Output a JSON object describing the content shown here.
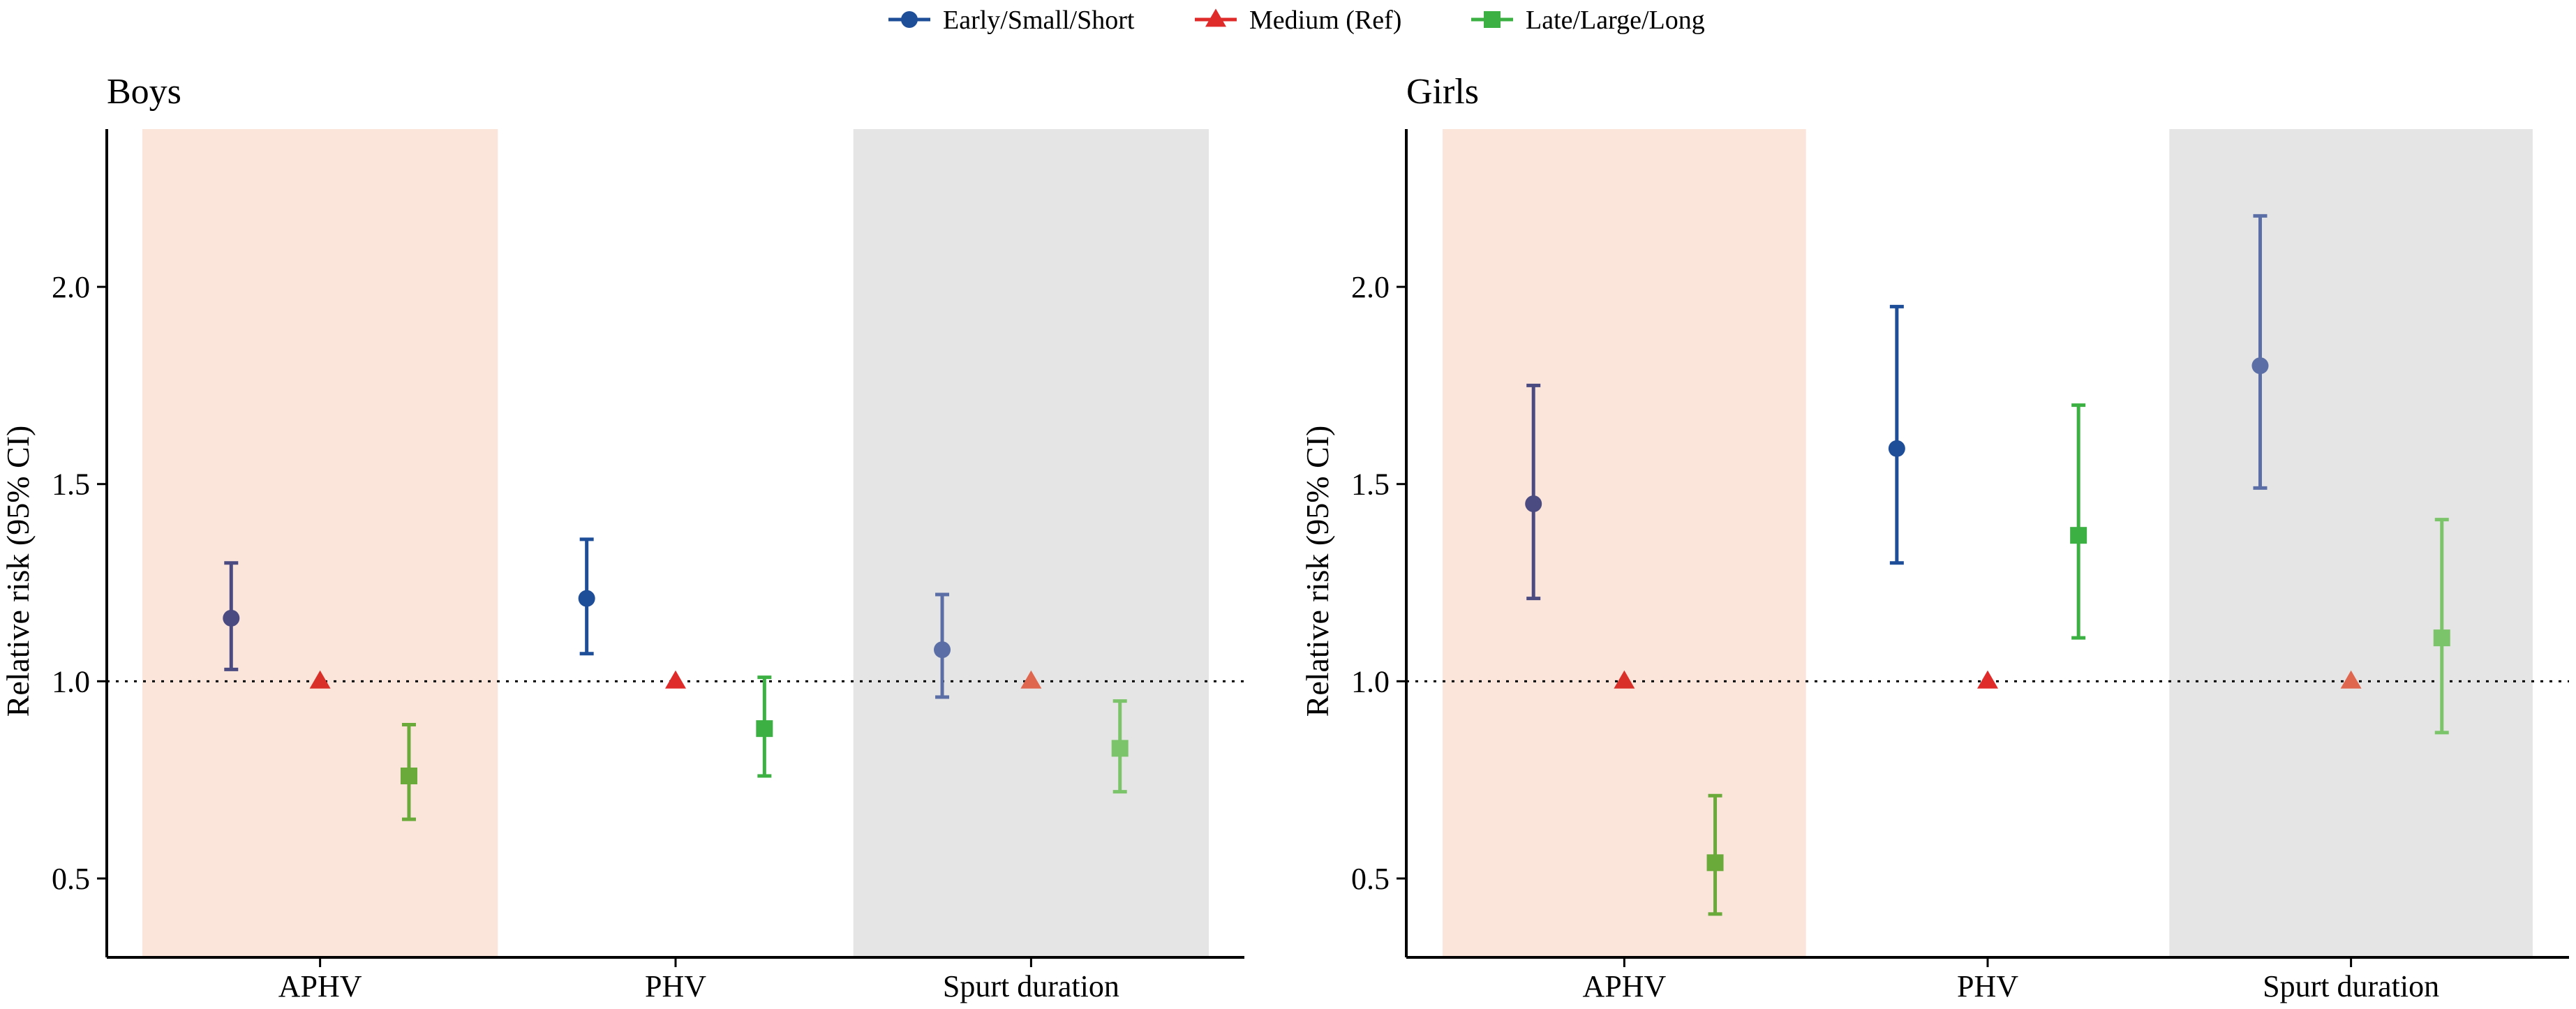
{
  "chart_data": {
    "type": "scatter",
    "subtype": "point-range (forest) plot",
    "legend": {
      "position": "top-center",
      "entries": [
        {
          "label": "Early/Small/Short",
          "marker": "circle",
          "color": "#1f4e99"
        },
        {
          "label": "Medium (Ref)",
          "marker": "triangle",
          "color": "#e02b2b"
        },
        {
          "label": "Late/Large/Long",
          "marker": "square",
          "color": "#3cb043"
        }
      ]
    },
    "ylabel": "Relative risk (95% CI)",
    "ylim": [
      0.3,
      2.4
    ],
    "yticks": [
      0.5,
      1.0,
      1.5,
      2.0
    ],
    "ytick_labels": [
      "0.5",
      "1.0",
      "1.5",
      "2.0"
    ],
    "reference_line": 1.0,
    "categories": [
      "APHV",
      "PHV",
      "Spurt duration"
    ],
    "category_backgrounds": [
      "#fbe5da",
      "#ffffff",
      "#e5e5e5"
    ],
    "panels": [
      {
        "title": "Boys",
        "series": [
          {
            "category": "APHV",
            "points": [
              {
                "group": "Early/Small/Short",
                "estimate": 1.16,
                "lower": 1.03,
                "upper": 1.3,
                "color": "#4b4b82"
              },
              {
                "group": "Medium (Ref)",
                "estimate": 1.0,
                "lower": null,
                "upper": null,
                "color": "#d9302a"
              },
              {
                "group": "Late/Large/Long",
                "estimate": 0.76,
                "lower": 0.65,
                "upper": 0.89,
                "color": "#6aaa3a"
              }
            ]
          },
          {
            "category": "PHV",
            "points": [
              {
                "group": "Early/Small/Short",
                "estimate": 1.21,
                "lower": 1.07,
                "upper": 1.36,
                "color": "#1f4e99"
              },
              {
                "group": "Medium (Ref)",
                "estimate": 1.0,
                "lower": null,
                "upper": null,
                "color": "#e02b2b"
              },
              {
                "group": "Late/Large/Long",
                "estimate": 0.88,
                "lower": 0.76,
                "upper": 1.01,
                "color": "#3cb043"
              }
            ]
          },
          {
            "category": "Spurt duration",
            "points": [
              {
                "group": "Early/Small/Short",
                "estimate": 1.08,
                "lower": 0.96,
                "upper": 1.22,
                "color": "#5b6fa6"
              },
              {
                "group": "Medium (Ref)",
                "estimate": 1.0,
                "lower": null,
                "upper": null,
                "color": "#e0674f"
              },
              {
                "group": "Late/Large/Long",
                "estimate": 0.83,
                "lower": 0.72,
                "upper": 0.95,
                "color": "#7cc46a"
              }
            ]
          }
        ]
      },
      {
        "title": "Girls",
        "series": [
          {
            "category": "APHV",
            "points": [
              {
                "group": "Early/Small/Short",
                "estimate": 1.45,
                "lower": 1.21,
                "upper": 1.75,
                "color": "#4b4b82"
              },
              {
                "group": "Medium (Ref)",
                "estimate": 1.0,
                "lower": null,
                "upper": null,
                "color": "#d9302a"
              },
              {
                "group": "Late/Large/Long",
                "estimate": 0.54,
                "lower": 0.41,
                "upper": 0.71,
                "color": "#6aaa3a"
              }
            ]
          },
          {
            "category": "PHV",
            "points": [
              {
                "group": "Early/Small/Short",
                "estimate": 1.59,
                "lower": 1.3,
                "upper": 1.95,
                "color": "#1f4e99"
              },
              {
                "group": "Medium (Ref)",
                "estimate": 1.0,
                "lower": null,
                "upper": null,
                "color": "#e02b2b"
              },
              {
                "group": "Late/Large/Long",
                "estimate": 1.37,
                "lower": 1.11,
                "upper": 1.7,
                "color": "#3cb043"
              }
            ]
          },
          {
            "category": "Spurt duration",
            "points": [
              {
                "group": "Early/Small/Short",
                "estimate": 1.8,
                "lower": 1.49,
                "upper": 2.18,
                "color": "#5b6fa6"
              },
              {
                "group": "Medium (Ref)",
                "estimate": 1.0,
                "lower": null,
                "upper": null,
                "color": "#e0674f"
              },
              {
                "group": "Late/Large/Long",
                "estimate": 1.11,
                "lower": 0.87,
                "upper": 1.41,
                "color": "#7cc46a"
              }
            ]
          }
        ]
      }
    ]
  }
}
